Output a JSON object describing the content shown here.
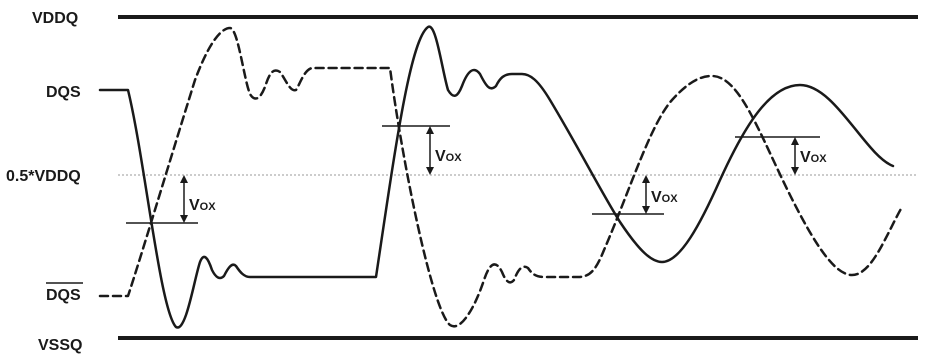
{
  "labels": {
    "vddq": "VDDQ",
    "dqs": "DQS",
    "mid": "0.5*VDDQ",
    "dqs_bar": "DQS",
    "vssq": "VSSQ"
  },
  "vox": {
    "main": "V",
    "sub": "OX"
  },
  "colors": {
    "ink": "#1a1a1a",
    "reference_line": "#9a9a9a"
  }
}
